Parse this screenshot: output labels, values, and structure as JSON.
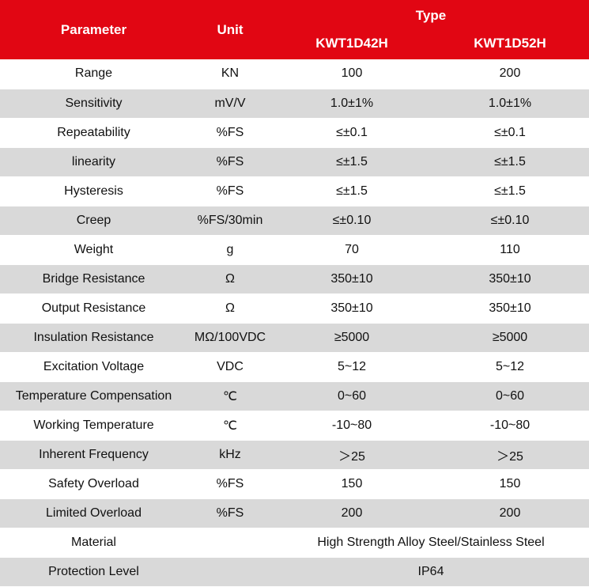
{
  "header": {
    "parameter": "Parameter",
    "unit": "Unit",
    "type": "Type",
    "models": [
      "KWT1D42H",
      "KWT1D52H"
    ]
  },
  "rows": [
    {
      "parameter": "Range",
      "unit": "KN",
      "v1": "100",
      "v2": "200"
    },
    {
      "parameter": "Sensitivity",
      "unit": "mV/V",
      "v1": "1.0±1%",
      "v2": "1.0±1%"
    },
    {
      "parameter": "Repeatability",
      "unit": "%FS",
      "v1": "≤±0.1",
      "v2": "≤±0.1"
    },
    {
      "parameter": "linearity",
      "unit": "%FS",
      "v1": "≤±1.5",
      "v2": "≤±1.5"
    },
    {
      "parameter": "Hysteresis",
      "unit": "%FS",
      "v1": "≤±1.5",
      "v2": "≤±1.5"
    },
    {
      "parameter": "Creep",
      "unit": "%FS/30min",
      "v1": "≤±0.10",
      "v2": "≤±0.10"
    },
    {
      "parameter": "Weight",
      "unit": "g",
      "v1": "70",
      "v2": "110"
    },
    {
      "parameter": "Bridge Resistance",
      "unit": "Ω",
      "v1": "350±10",
      "v2": "350±10"
    },
    {
      "parameter": "Output Resistance",
      "unit": "Ω",
      "v1": "350±10",
      "v2": "350±10"
    },
    {
      "parameter": "Insulation Resistance",
      "unit": "MΩ/100VDC",
      "v1": "≥5000",
      "v2": "≥5000"
    },
    {
      "parameter": "Excitation Voltage",
      "unit": "VDC",
      "v1": "5~12",
      "v2": "5~12"
    },
    {
      "parameter": "Temperature Compensation",
      "unit": "℃",
      "v1": "0~60",
      "v2": "0~60"
    },
    {
      "parameter": "Working Temperature",
      "unit": "℃",
      "v1": "-10~80",
      "v2": "-10~80"
    },
    {
      "parameter": "Inherent Frequency",
      "unit": "kHz",
      "v1": "＞25",
      "v2": "＞25"
    },
    {
      "parameter": "Safety Overload",
      "unit": "%FS",
      "v1": "150",
      "v2": "150"
    },
    {
      "parameter": "Limited Overload",
      "unit": "%FS",
      "v1": "200",
      "v2": "200"
    }
  ],
  "material": {
    "parameter": "Material",
    "unit": "",
    "value": "High Strength Alloy Steel/Stainless Steel"
  },
  "protection": {
    "parameter": "Protection Level",
    "unit": "",
    "value": "IP64"
  },
  "colors": {
    "header_bg": "#e10613",
    "stripe": "#d9d9d9"
  }
}
